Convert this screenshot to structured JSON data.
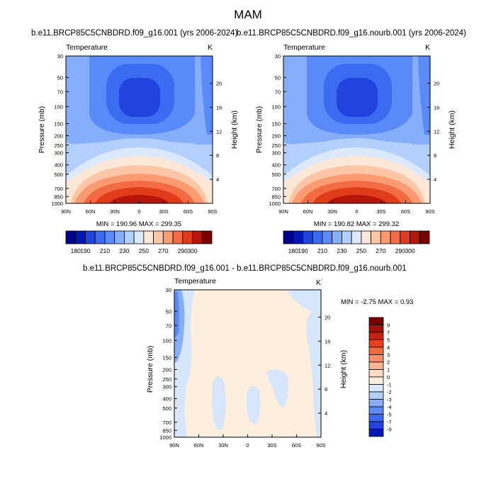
{
  "figure": {
    "title": "MAM"
  },
  "chart_data": [
    {
      "type": "heatmap",
      "title": "b.e11.BRCP85C5CNBDRD.f09_g16.001 (yrs 2006-2024)",
      "left_string": "Temperature",
      "right_string": "K",
      "xlabel": "",
      "ylabel": "Pressure (mb)",
      "ylabel_right": "Height (km)",
      "x_ticks": [
        "90N",
        "60N",
        "30N",
        "0",
        "30S",
        "60S",
        "90S"
      ],
      "y_ticks": [
        "30",
        "50",
        "70",
        "100",
        "150",
        "200",
        "250",
        "300",
        "400",
        "500",
        "700",
        "850",
        "1000"
      ],
      "y_right_ticks": [
        "20",
        "16",
        "12",
        "8",
        "4"
      ],
      "stats": "MIN = 190.96  MAX = 299.35",
      "colorbar_levels": [
        "180",
        "190",
        "200",
        "210",
        "220",
        "230",
        "240",
        "250",
        "260",
        "270",
        "280",
        "290",
        "300"
      ],
      "colorbar_labels": [
        "180",
        "190",
        "210",
        "230",
        "250",
        "270",
        "290",
        "300"
      ],
      "colors": [
        "#00008f",
        "#0019b5",
        "#1f43dc",
        "#3b6bf0",
        "#5a8af7",
        "#86aefa",
        "#b3cffc",
        "#dce9fc",
        "#fde7d6",
        "#fcc6a7",
        "#fa9b72",
        "#f26b42",
        "#df3c1c",
        "#b5150a",
        "#7a0000"
      ],
      "min": 190.96,
      "max": 299.35
    },
    {
      "type": "heatmap",
      "title": "b.e11.BRCP85C5CNBDRD.f09_g16.nourb.001 (yrs 2006-2024)",
      "left_string": "Temperature",
      "right_string": "K",
      "xlabel": "",
      "ylabel": "Pressure (mb)",
      "ylabel_right": "Height (km)",
      "x_ticks": [
        "90N",
        "60N",
        "30N",
        "0",
        "30S",
        "60S",
        "90S"
      ],
      "y_ticks": [
        "30",
        "50",
        "70",
        "100",
        "150",
        "200",
        "250",
        "300",
        "400",
        "500",
        "700",
        "850",
        "1000"
      ],
      "y_right_ticks": [
        "20",
        "16",
        "12",
        "8",
        "4"
      ],
      "stats": "MIN = 190.82  MAX = 299.32",
      "colorbar_levels": [
        "180",
        "190",
        "200",
        "210",
        "220",
        "230",
        "240",
        "250",
        "260",
        "270",
        "280",
        "290",
        "300"
      ],
      "colorbar_labels": [
        "180",
        "190",
        "210",
        "230",
        "250",
        "270",
        "290",
        "300"
      ],
      "colors": [
        "#00008f",
        "#0019b5",
        "#1f43dc",
        "#3b6bf0",
        "#5a8af7",
        "#86aefa",
        "#b3cffc",
        "#dce9fc",
        "#fde7d6",
        "#fcc6a7",
        "#fa9b72",
        "#f26b42",
        "#df3c1c",
        "#b5150a",
        "#7a0000"
      ],
      "min": 190.82,
      "max": 299.32
    },
    {
      "type": "heatmap",
      "title": "b.e11.BRCP85C5CNBDRD.f09_g16.001 - b.e11.BRCP85C5CNBDRD.f09_g16.nourb.001",
      "left_string": "Temperature",
      "right_string": "K",
      "xlabel": "",
      "ylabel": "Pressure (mb)",
      "ylabel_right": "Height (km)",
      "x_ticks": [
        "90N",
        "60N",
        "30N",
        "0",
        "30S",
        "60S",
        "90S"
      ],
      "y_ticks": [
        "30",
        "50",
        "70",
        "100",
        "150",
        "200",
        "250",
        "300",
        "400",
        "500",
        "700",
        "850",
        "1000"
      ],
      "y_right_ticks": [
        "20",
        "16",
        "12",
        "8",
        "4"
      ],
      "stats": "MIN = -2.75  MAX =  0.93",
      "colorbar_labels": [
        "9",
        "7",
        "5",
        "4",
        "3",
        "2",
        "1",
        "0",
        "-1",
        "-2",
        "-3",
        "-4",
        "-5",
        "-7",
        "-9"
      ],
      "colors": [
        "#7a0000",
        "#a50f0a",
        "#c8200f",
        "#e8401e",
        "#f66a3c",
        "#f99066",
        "#fbb596",
        "#fddcc6",
        "#fdeedd",
        "#dce9fc",
        "#b3cffc",
        "#86aefa",
        "#5a8af7",
        "#3b6bf0",
        "#1f43dc",
        "#0019b5"
      ],
      "background_color": "#fdeedd",
      "negative_color": "#d6e6fc",
      "min": -2.75,
      "max": 0.93
    }
  ]
}
